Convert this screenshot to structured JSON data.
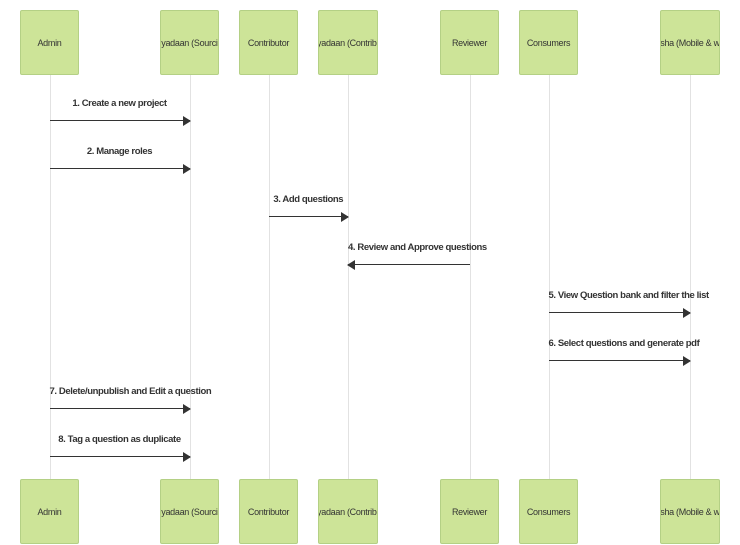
{
  "participants": [
    {
      "id": "admin",
      "label": "Admin"
    },
    {
      "id": "vidyadaan-sourcing",
      "label": "Vidyadaan (Sourcing)"
    },
    {
      "id": "contributor",
      "label": "Contributor"
    },
    {
      "id": "vidyadaan-contribute",
      "label": "Vidyadaan (Contribute)"
    },
    {
      "id": "reviewer",
      "label": "Reviewer"
    },
    {
      "id": "consumers",
      "label": "Consumers"
    },
    {
      "id": "diksha",
      "label": "Diksha (Mobile & web)"
    }
  ],
  "messages": [
    {
      "from": "admin",
      "to": "vidyadaan-sourcing",
      "label": "1. Create a new project"
    },
    {
      "from": "admin",
      "to": "vidyadaan-sourcing",
      "label": "2. Manage roles"
    },
    {
      "from": "contributor",
      "to": "vidyadaan-contribute",
      "label": "3. Add questions"
    },
    {
      "from": "reviewer",
      "to": "vidyadaan-contribute",
      "label": "4. Review and Approve questions"
    },
    {
      "from": "consumers",
      "to": "diksha",
      "label": "5. View Question bank and filter the list"
    },
    {
      "from": "consumers",
      "to": "diksha",
      "label": "6. Select questions and generate pdf"
    },
    {
      "from": "admin",
      "to": "vidyadaan-sourcing",
      "label": "7. Delete/unpublish and Edit a question"
    },
    {
      "from": "admin",
      "to": "vidyadaan-sourcing",
      "label": "8. Tag a question as duplicate"
    }
  ],
  "colors": {
    "actor_fill": "#cde498",
    "arrow": "#333333",
    "lifeline": "#e2e2e2"
  }
}
